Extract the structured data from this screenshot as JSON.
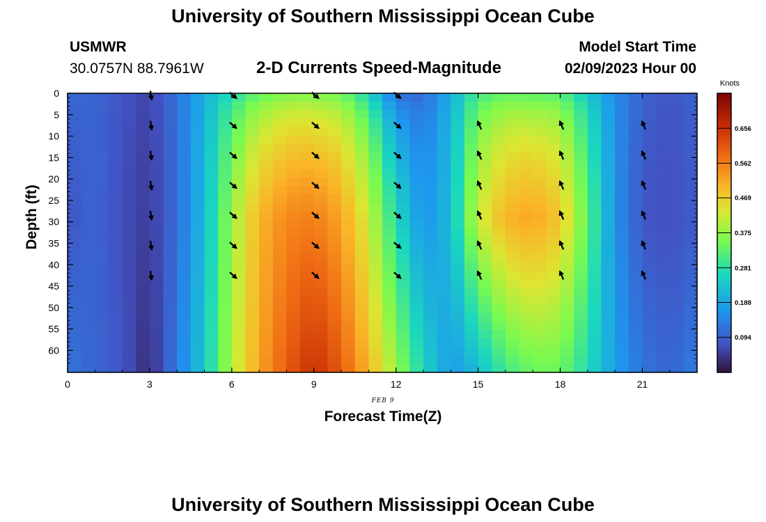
{
  "header": {
    "title": "University of Southern Mississippi Ocean Cube",
    "station": "USMWR",
    "coords": "30.0757N  88.7961W",
    "plot_title": "2-D Currents Speed-Magnitude",
    "model_label": "Model Start Time",
    "model_time": "02/09/2023 Hour 00"
  },
  "footer": {
    "title": "University of Southern Mississippi Ocean Cube"
  },
  "date_label": "FEB 9",
  "colorbar": {
    "unit": "Knots",
    "ticks": [
      "0.656",
      "0.562",
      "0.469",
      "0.375",
      "0.281",
      "0.188",
      "0.094"
    ],
    "tick_values": [
      0.656,
      0.562,
      0.469,
      0.375,
      0.281,
      0.188,
      0.094
    ],
    "min": 0.0,
    "max": 0.75
  },
  "colors": {
    "arrow": "#000000",
    "axis": "#000000"
  },
  "chart_data": {
    "type": "heatmap",
    "title": "2-D Currents Speed-Magnitude",
    "xlabel": "Forecast Time(Z)",
    "ylabel": "Depth (ft)",
    "xlim": [
      0,
      23
    ],
    "ylim": [
      0,
      64
    ],
    "x_ticks": [
      0,
      3,
      6,
      9,
      12,
      15,
      18,
      21
    ],
    "x_tick_labels": [
      "0",
      "3",
      "6",
      "9",
      "12",
      "15",
      "18",
      "21"
    ],
    "y_ticks": [
      0,
      5,
      10,
      15,
      20,
      25,
      30,
      35,
      40,
      45,
      50,
      55,
      60
    ],
    "y_tick_labels": [
      "0",
      "5",
      "10",
      "15",
      "20",
      "25",
      "30",
      "35",
      "40",
      "45",
      "50",
      "55",
      "60"
    ],
    "units": "Knots",
    "speed_profile_by_hour": {
      "hours": [
        0,
        1,
        2,
        3,
        4,
        5,
        6,
        7,
        8,
        9,
        10,
        11,
        12,
        13,
        14,
        15,
        16,
        17,
        18,
        19,
        20,
        21,
        22,
        23
      ],
      "surface": [
        0.11,
        0.1,
        0.08,
        0.06,
        0.12,
        0.2,
        0.26,
        0.31,
        0.33,
        0.33,
        0.32,
        0.24,
        0.09,
        0.1,
        0.2,
        0.29,
        0.31,
        0.3,
        0.3,
        0.23,
        0.15,
        0.1,
        0.08,
        0.1
      ],
      "mid": [
        0.08,
        0.1,
        0.07,
        0.05,
        0.11,
        0.22,
        0.38,
        0.5,
        0.55,
        0.56,
        0.52,
        0.42,
        0.27,
        0.16,
        0.22,
        0.42,
        0.5,
        0.52,
        0.48,
        0.33,
        0.16,
        0.08,
        0.07,
        0.09
      ],
      "bottom": [
        0.12,
        0.1,
        0.08,
        0.03,
        0.13,
        0.24,
        0.4,
        0.52,
        0.6,
        0.66,
        0.6,
        0.5,
        0.38,
        0.26,
        0.17,
        0.22,
        0.3,
        0.34,
        0.34,
        0.27,
        0.18,
        0.12,
        0.1,
        0.13
      ]
    },
    "arrows": {
      "hours": [
        3,
        6,
        9,
        12,
        15,
        18,
        21
      ],
      "depths": [
        [
          0,
          7,
          14,
          21,
          28,
          35,
          42
        ],
        [
          0,
          7,
          14,
          21,
          28,
          35,
          42
        ],
        [
          0,
          7,
          14,
          21,
          28,
          35,
          42
        ],
        [
          0,
          7,
          14,
          21,
          28,
          35,
          42
        ],
        [
          7,
          14,
          21,
          28,
          35,
          42
        ],
        [
          7,
          14,
          21,
          28,
          35,
          42
        ],
        [
          7,
          14,
          21,
          28,
          35,
          42
        ]
      ],
      "direction": [
        "down",
        "down-right",
        "down-right",
        "down-right",
        "up-left",
        "up-left",
        "up-left"
      ]
    }
  }
}
